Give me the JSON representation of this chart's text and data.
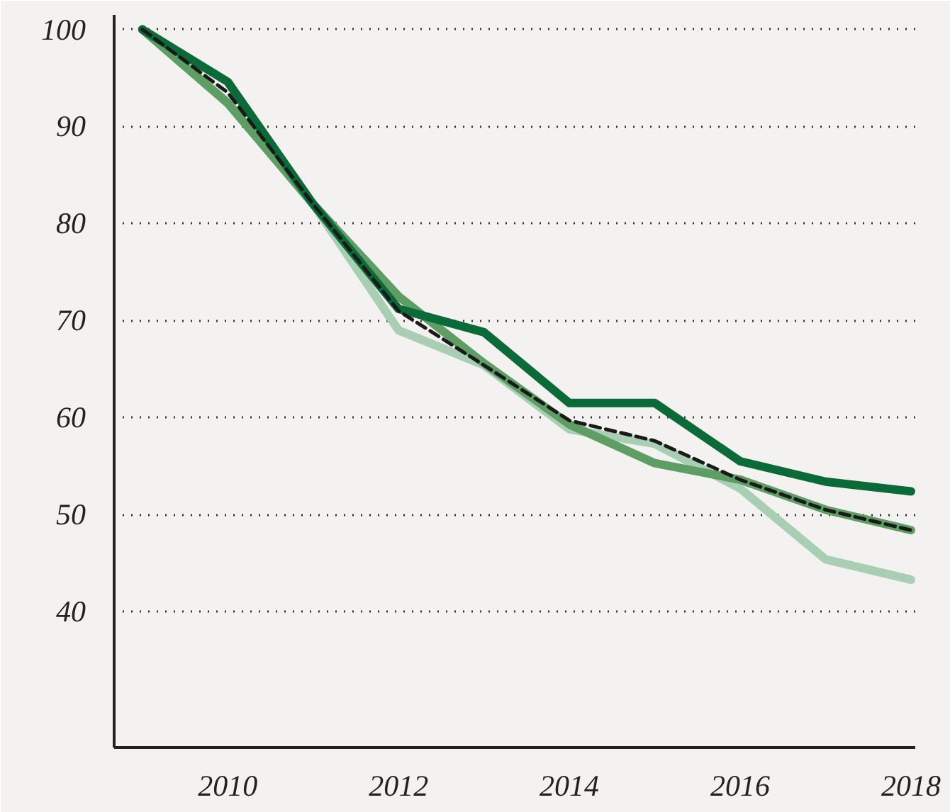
{
  "chart_data": {
    "type": "line",
    "x": [
      2009,
      2010,
      2011,
      2012,
      2013,
      2014,
      2015,
      2016,
      2017,
      2018
    ],
    "series": [
      {
        "color": "#a8cfb4",
        "values": [
          100,
          92.5,
          82,
          69,
          65.4,
          58.8,
          57.3,
          52.7,
          45.4,
          43.3
        ]
      },
      {
        "color": "#5e9e65",
        "values": [
          100,
          92.4,
          82,
          72.5,
          65.6,
          59.3,
          55.3,
          53.6,
          50.5,
          48.4
        ]
      },
      {
        "color": "#0b6b38",
        "values": [
          100,
          94.6,
          82,
          71.2,
          68.8,
          61.5,
          61.5,
          55.5,
          53.4,
          52.4
        ]
      },
      {
        "color": "#1a1a1a",
        "values": [
          100,
          93.5,
          82,
          71,
          65.4,
          59.7,
          57.6,
          53.6,
          50.5,
          48.4
        ],
        "line_style": "dashed"
      }
    ],
    "xlim": [
      2008.67,
      2018.05
    ],
    "ylim": [
      26,
      101.5
    ],
    "xticks": [
      2010,
      2012,
      2014,
      2016,
      2018
    ],
    "yticks": [
      40,
      50,
      60,
      70,
      80,
      90,
      100
    ],
    "grid": "y"
  }
}
